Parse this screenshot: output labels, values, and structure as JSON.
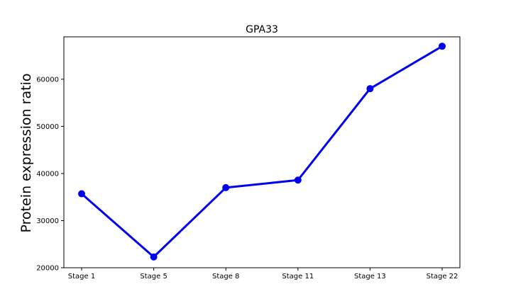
{
  "chart_data": {
    "type": "line",
    "title": "GPA33",
    "xlabel": "",
    "ylabel": "Protein expression ratio",
    "categories": [
      "Stage 1",
      "Stage 5",
      "Stage 8",
      "Stage 11",
      "Stage 13",
      "Stage 22"
    ],
    "series": [
      {
        "values": [
          35700,
          22300,
          37000,
          38600,
          58000,
          67000
        ],
        "color": "#0000ee"
      }
    ],
    "yticks": [
      20000,
      30000,
      40000,
      50000,
      60000
    ],
    "ylim": [
      20000,
      69000
    ],
    "grid": false,
    "legend": "none"
  }
}
